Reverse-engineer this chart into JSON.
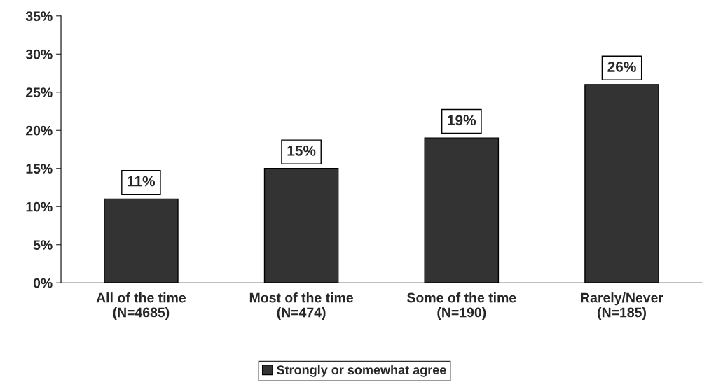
{
  "chart_data": {
    "type": "bar",
    "categories": [
      "All of the time\n(N=4685)",
      "Most of the time\n(N=474)",
      "Some of the time\n(N=190)",
      "Rarely/Never\n(N=185)"
    ],
    "series": [
      {
        "name": "Strongly or somewhat agree",
        "color": "#333333",
        "values": [
          11,
          15,
          19,
          26
        ]
      }
    ],
    "value_labels": [
      "11%",
      "15%",
      "19%",
      "26%"
    ],
    "ylim": [
      0,
      35
    ],
    "yticks": [
      {
        "value": 0,
        "label": "0%"
      },
      {
        "value": 5,
        "label": "5%"
      },
      {
        "value": 10,
        "label": "10%"
      },
      {
        "value": 15,
        "label": "15%"
      },
      {
        "value": 20,
        "label": "20%"
      },
      {
        "value": 25,
        "label": "25%"
      },
      {
        "value": 30,
        "label": "30%"
      },
      {
        "value": 35,
        "label": "35%"
      }
    ],
    "grid": false,
    "legend": "bottom"
  }
}
